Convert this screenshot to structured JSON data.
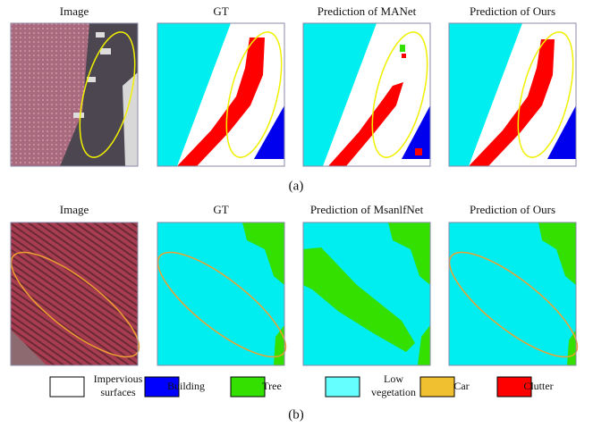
{
  "rows": [
    {
      "titles": [
        "Image",
        "GT",
        "Prediction of MANet",
        "Prediction of Ours"
      ],
      "caption": "(a)"
    },
    {
      "titles": [
        "Image",
        "GT",
        "Prediction of MsanlfNet",
        "Prediction of Ours"
      ],
      "caption": "(b)"
    }
  ],
  "legend": [
    {
      "label": "Impervious surfaces",
      "color": "#ffffff"
    },
    {
      "label": "Building",
      "color": "#0000ff"
    },
    {
      "label": "Tree",
      "color": "#33e000"
    },
    {
      "label": "Low vegetation",
      "color": "#66ffff"
    },
    {
      "label": "Car",
      "color": "#f0c030"
    },
    {
      "label": "Clutter",
      "color": "#ff0000"
    }
  ]
}
